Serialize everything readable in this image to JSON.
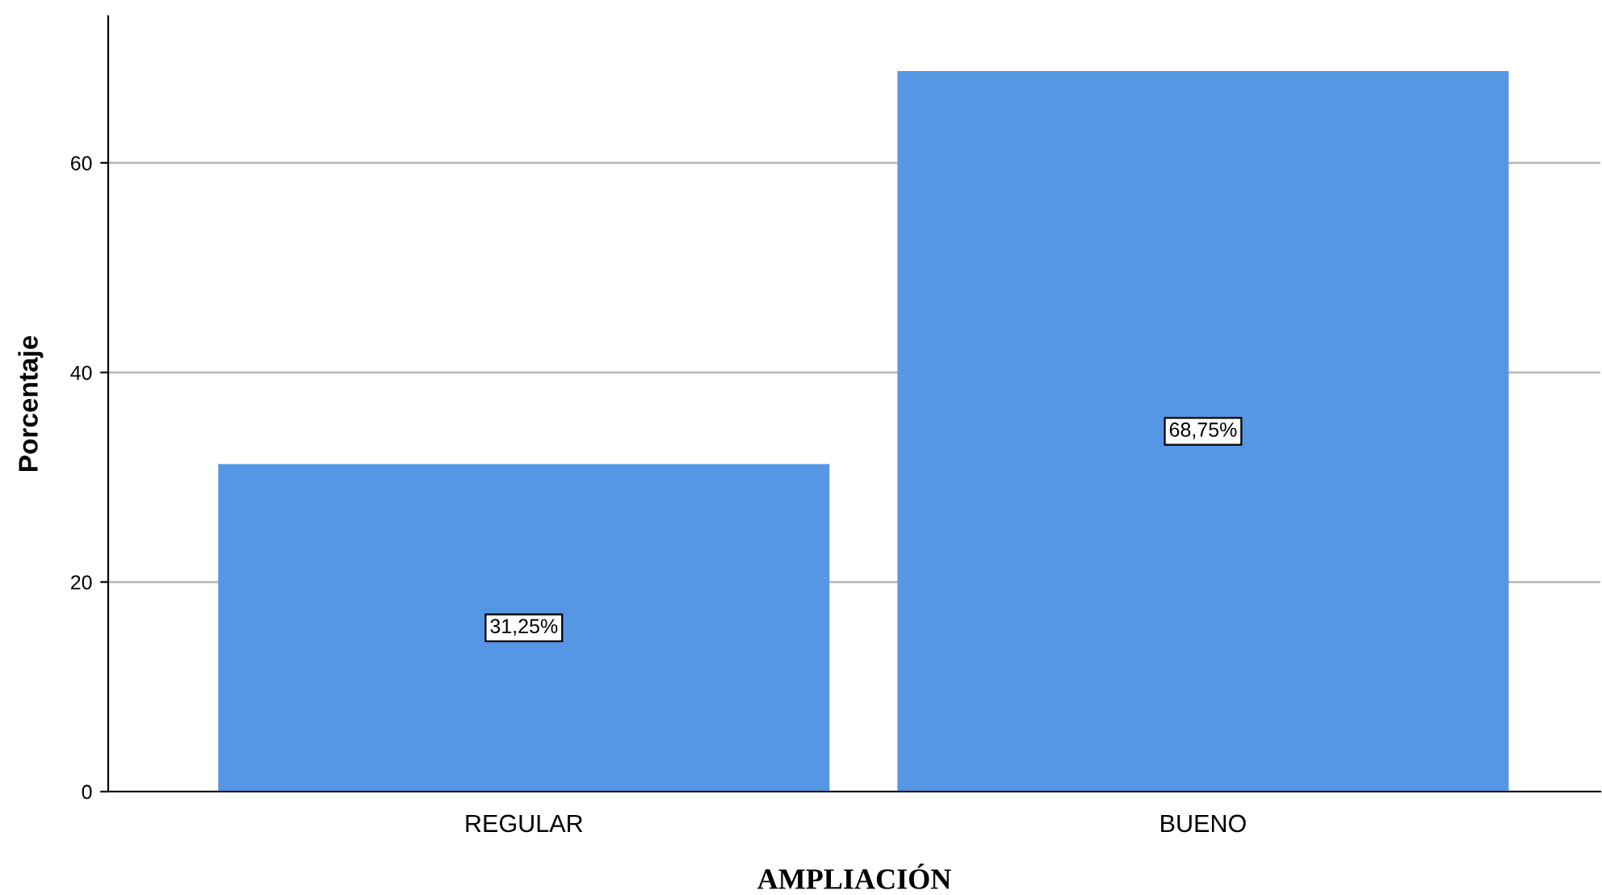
{
  "chart_data": {
    "type": "bar",
    "xlabel": "AMPLIACIÓN",
    "ylabel": "Porcentaje",
    "categories": [
      "REGULAR",
      "BUENO"
    ],
    "values": [
      31.25,
      68.75
    ],
    "value_labels": [
      "31,25%",
      "68,75%"
    ],
    "color": "#5596e5",
    "ylim": [
      0,
      74
    ],
    "yticks": [
      0,
      20,
      40,
      60
    ],
    "grid": "y"
  }
}
